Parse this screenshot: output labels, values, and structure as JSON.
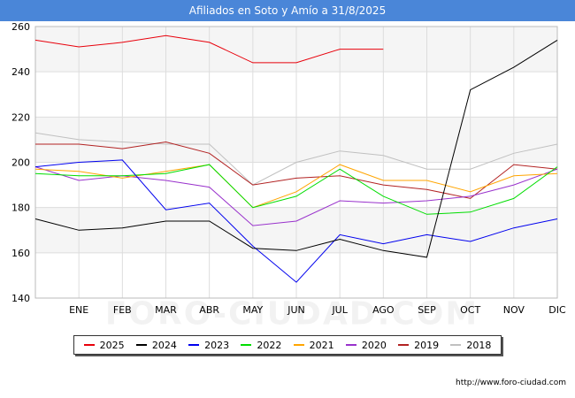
{
  "header": {
    "title": "Afiliados en Soto y Amío a 31/8/2025"
  },
  "footer": {
    "source": "http://www.foro-ciudad.com"
  },
  "watermark": {
    "text": "FORO-CIUDAD.COM"
  },
  "chart_data": {
    "type": "line",
    "categories": [
      "",
      "ENE",
      "FEB",
      "MAR",
      "ABR",
      "MAY",
      "JUN",
      "JUL",
      "AGO",
      "SEP",
      "OCT",
      "NOV",
      "DIC"
    ],
    "ylim": [
      140,
      260
    ],
    "yticks": [
      140,
      160,
      180,
      200,
      220,
      240,
      260
    ],
    "grid": true,
    "legend_position": "bottom",
    "series": [
      {
        "name": "2025",
        "color": "#e8000b",
        "values": [
          254,
          251,
          253,
          256,
          253,
          244,
          244,
          250,
          250,
          null,
          null,
          null,
          null
        ]
      },
      {
        "name": "2024",
        "color": "#000000",
        "values": [
          175,
          170,
          171,
          174,
          174,
          162,
          161,
          166,
          161,
          158,
          232,
          242,
          254
        ]
      },
      {
        "name": "2023",
        "color": "#0000ee",
        "values": [
          198,
          200,
          201,
          179,
          182,
          163,
          147,
          168,
          164,
          168,
          165,
          171,
          175
        ]
      },
      {
        "name": "2022",
        "color": "#00dd00",
        "values": [
          195,
          194,
          194,
          195,
          199,
          180,
          185,
          197,
          185,
          177,
          178,
          184,
          198
        ]
      },
      {
        "name": "2021",
        "color": "#ffa500",
        "values": [
          197,
          196,
          193,
          196,
          199,
          180,
          187,
          199,
          192,
          192,
          187,
          194,
          195
        ]
      },
      {
        "name": "2020",
        "color": "#9932cc",
        "values": [
          198,
          192,
          194,
          192,
          189,
          172,
          174,
          183,
          182,
          183,
          185,
          190,
          197
        ]
      },
      {
        "name": "2019",
        "color": "#b22222",
        "values": [
          208,
          208,
          206,
          209,
          204,
          190,
          193,
          194,
          190,
          188,
          184,
          199,
          197
        ]
      },
      {
        "name": "2018",
        "color": "#c0c0c0",
        "values": [
          213,
          210,
          209,
          208,
          208,
          190,
          200,
          205,
          203,
          197,
          197,
          204,
          208
        ]
      }
    ]
  }
}
